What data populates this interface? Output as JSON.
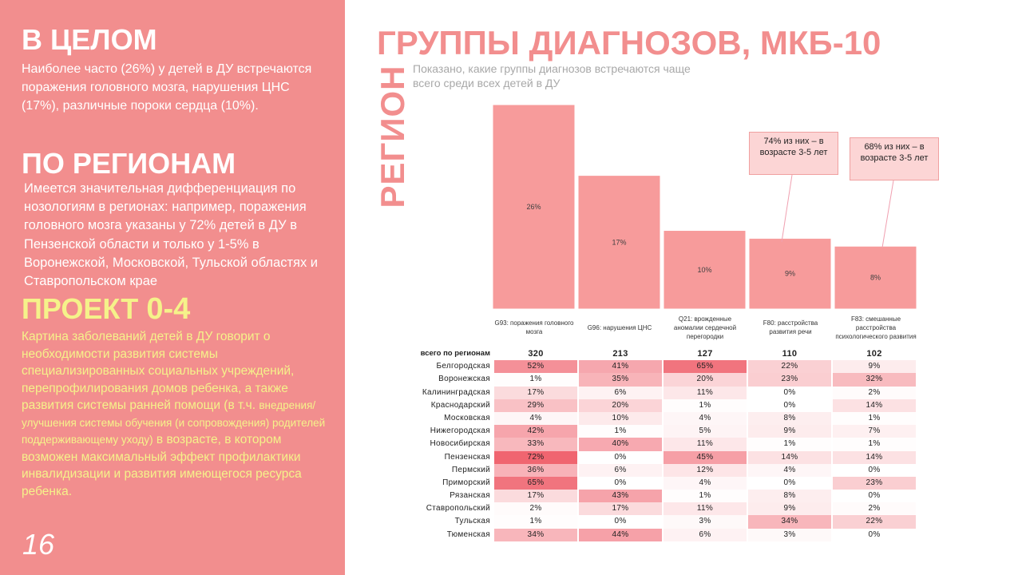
{
  "left": {
    "overall_heading": "В ЦЕЛОМ",
    "overall_text": "Наиболее часто (26%) у детей в ДУ встречаются поражения головного мозга, нарушения ЦНС (17%), различные пороки сердца (10%).",
    "regions_heading": "ПО РЕГИОНАМ",
    "regions_text": "Имеется значительная дифференциация по нозологиям в регионах: например, поражения головного мозга указаны у 72% детей в ДУ в Пензенской области и только у 1-5% в Воронежской, Московской, Тульской областях и Ставропольском крае",
    "project_heading_word": "ПРОЕКТ",
    "project_heading_num": "0-4",
    "project_text_1": "Картина заболеваний детей в ДУ говорит о необходимости развития системы специализированных социальных учреждений, перепрофилирования домов ребенка, а также развития системы ранней помощи (в т.ч.",
    "project_text_small": "внедрения/улучшения  системы обучения (и сопровождения) родителей поддерживающему  уходу)",
    "project_text_2": "в возрасте, в котором возможен максимальный эффект профилактики инвалидизации и развития имеющегося ресурса ребенка.",
    "page_number": "16"
  },
  "title": "ГРУППЫ ДИАГНОЗОВ, МКБ-10",
  "vertical_label": "РЕГИОН",
  "subtitle": "Показано, какие группы диагнозов встречаются чаще всего среди всех детей в ДУ",
  "callouts": [
    "74% из них – в возрасте 3-5 лет",
    "68% из них – в возрасте 3-5 лет"
  ],
  "colors": {
    "panel": "#f28e8e",
    "bar": "#f79b9b",
    "project": "#f5f28a",
    "heat_low": "#ffffff",
    "heat_high": "#f06570"
  },
  "chart_data": {
    "type": "bar",
    "categories": [
      "G93: поражения головного мозга",
      "G96: нарушения ЦНС",
      "Q21: врожденные аномалии сердечной перегородки",
      "F80: расстройства развития речи",
      "F83: смешанные расстройства психологического развития"
    ],
    "values": [
      26,
      17,
      10,
      9,
      8
    ],
    "value_labels": [
      "26%",
      "17%",
      "10%",
      "9%",
      "8%"
    ],
    "ylim": [
      0,
      26
    ]
  },
  "table": {
    "total_label": "всего по регионам",
    "totals": [
      "320",
      "213",
      "127",
      "110",
      "102"
    ],
    "rows": [
      {
        "region": "Белгородская",
        "values": [
          "52%",
          "41%",
          "65%",
          "22%",
          "9%"
        ]
      },
      {
        "region": "Воронежская",
        "values": [
          "1%",
          "35%",
          "20%",
          "23%",
          "32%"
        ]
      },
      {
        "region": "Калининградская",
        "values": [
          "17%",
          "6%",
          "11%",
          "0%",
          "2%"
        ]
      },
      {
        "region": "Краснодарский",
        "values": [
          "29%",
          "20%",
          "1%",
          "0%",
          "14%"
        ]
      },
      {
        "region": "Московская",
        "values": [
          "4%",
          "10%",
          "4%",
          "8%",
          "1%"
        ]
      },
      {
        "region": "Нижегородская",
        "values": [
          "42%",
          "1%",
          "5%",
          "9%",
          "7%"
        ]
      },
      {
        "region": "Новосибирская",
        "values": [
          "33%",
          "40%",
          "11%",
          "1%",
          "1%"
        ]
      },
      {
        "region": "Пензенская",
        "values": [
          "72%",
          "0%",
          "45%",
          "14%",
          "14%"
        ]
      },
      {
        "region": "Пермский",
        "values": [
          "36%",
          "6%",
          "12%",
          "4%",
          "0%"
        ]
      },
      {
        "region": "Приморский",
        "values": [
          "65%",
          "0%",
          "4%",
          "0%",
          "23%"
        ]
      },
      {
        "region": "Рязанская",
        "values": [
          "17%",
          "43%",
          "1%",
          "8%",
          "0%"
        ]
      },
      {
        "region": "Ставропольский",
        "values": [
          "2%",
          "17%",
          "11%",
          "9%",
          "2%"
        ]
      },
      {
        "region": "Тульская",
        "values": [
          "1%",
          "0%",
          "3%",
          "34%",
          "22%"
        ]
      },
      {
        "region": "Тюменская",
        "values": [
          "34%",
          "44%",
          "6%",
          "3%",
          "0%"
        ]
      }
    ]
  }
}
